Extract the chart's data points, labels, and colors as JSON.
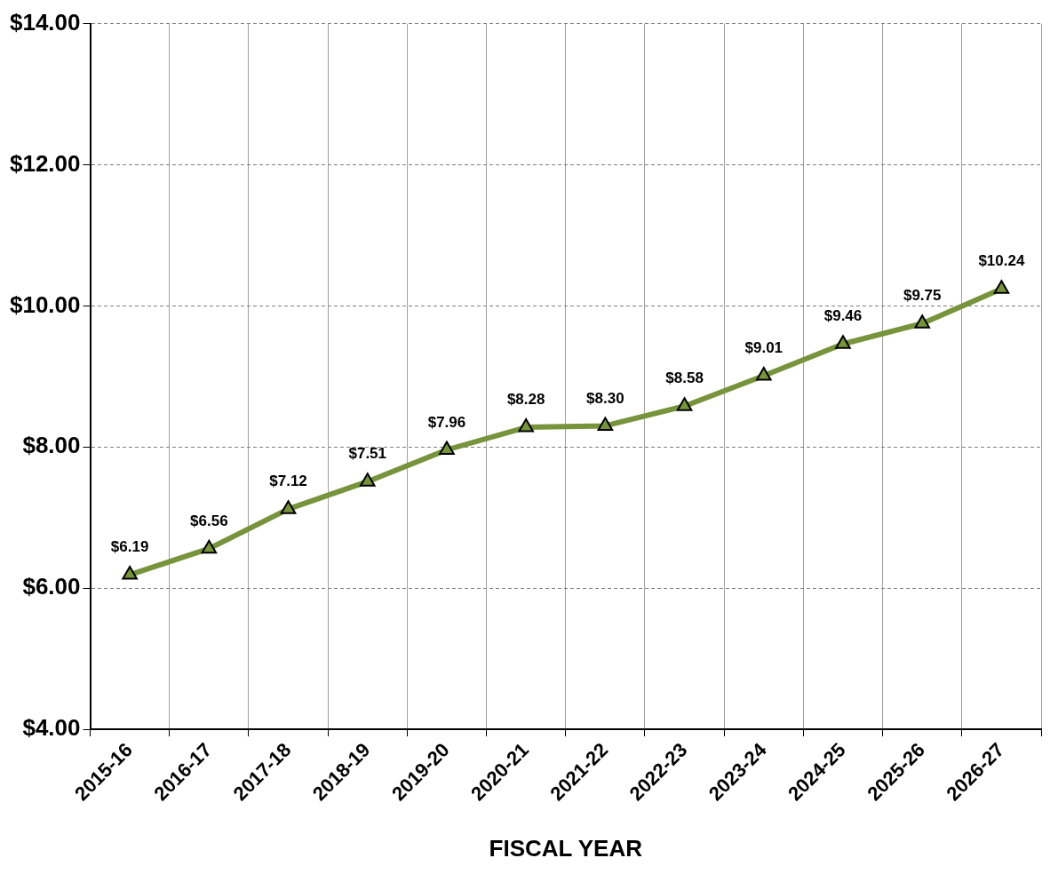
{
  "chart_data": {
    "type": "line",
    "xlabel": "FISCAL YEAR",
    "categories": [
      "2015-16",
      "2016-17",
      "2017-18",
      "2018-19",
      "2019-20",
      "2020-21",
      "2021-22",
      "2022-23",
      "2023-24",
      "2024-25",
      "2025-26",
      "2026-27"
    ],
    "series": [
      {
        "color": "#77933c",
        "values": [
          6.19,
          6.56,
          7.12,
          7.51,
          7.96,
          8.28,
          8.3,
          8.58,
          9.01,
          9.46,
          9.75,
          10.24
        ],
        "value_labels": [
          "$6.19",
          "$6.56",
          "$7.12",
          "$7.51",
          "$7.96",
          "$8.28",
          "$8.30",
          "$8.58",
          "$9.01",
          "$9.46",
          "$9.75",
          "$10.24"
        ]
      }
    ],
    "ylim": [
      4,
      14
    ],
    "yticks": [
      {
        "value": 4,
        "label": "$4.00"
      },
      {
        "value": 6,
        "label": "$6.00"
      },
      {
        "value": 8,
        "label": "$8.00"
      },
      {
        "value": 10,
        "label": "$10.00"
      },
      {
        "value": 12,
        "label": "$12.00"
      },
      {
        "value": 14,
        "label": "$14.00"
      }
    ],
    "grid": true,
    "marker": "triangle",
    "line_style": "solid"
  }
}
